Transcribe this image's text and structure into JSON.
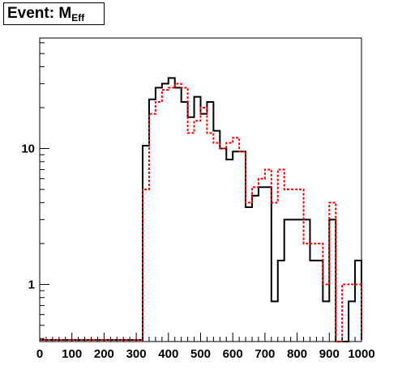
{
  "title": {
    "main": "Event: M",
    "sub": "Eff"
  },
  "chart_data": {
    "type": "histogram",
    "xlim": [
      0,
      1000
    ],
    "ylim": [
      0.38,
      65
    ],
    "y_scale": "log",
    "bin_width": 20,
    "x_tick_labels": [
      "0",
      "100",
      "200",
      "300",
      "400",
      "500",
      "600",
      "700",
      "800",
      "900",
      "1000"
    ],
    "y_tick_labels": [
      {
        "value": 1,
        "label": "1"
      },
      {
        "value": 10,
        "label": "10"
      }
    ],
    "series": [
      {
        "color": "#000000",
        "style": "solid",
        "bin_edges": [
          320,
          340,
          360,
          380,
          400,
          420,
          440,
          460,
          480,
          500,
          520,
          540,
          560,
          580,
          600,
          620,
          640,
          660,
          680,
          700,
          720,
          740,
          760,
          780,
          800,
          820,
          840,
          860,
          880,
          900,
          920,
          940,
          960,
          980,
          1000
        ],
        "values": [
          10.5,
          23,
          28,
          30,
          33,
          28,
          22,
          17,
          24,
          18,
          22,
          13.5,
          10,
          8.3,
          9.5,
          9.5,
          3.7,
          4.5,
          5.2,
          5.2,
          0.75,
          1.5,
          3,
          3,
          3,
          3,
          1.5,
          1.5,
          0.75,
          3,
          0.3,
          0.3,
          0.75,
          1.5
        ]
      },
      {
        "color": "#ff0000",
        "style": "dashed",
        "bin_edges": [
          320,
          340,
          360,
          380,
          400,
          420,
          440,
          460,
          480,
          500,
          520,
          540,
          560,
          580,
          600,
          620,
          640,
          660,
          680,
          700,
          720,
          740,
          760,
          780,
          800,
          820,
          840,
          860,
          880,
          900,
          920,
          940,
          960,
          980,
          1000
        ],
        "values": [
          5,
          18,
          22,
          27,
          28,
          30,
          28,
          13,
          16,
          20,
          13,
          11,
          10,
          11,
          12,
          9.5,
          4,
          5.2,
          6,
          7,
          4,
          7,
          5,
          5,
          5,
          2,
          2,
          2,
          1,
          4,
          0.3,
          1,
          1,
          1
        ]
      }
    ]
  }
}
